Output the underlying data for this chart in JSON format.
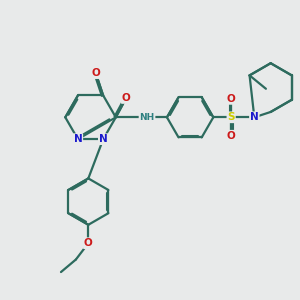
{
  "background_color": "#e8eaea",
  "bond_color": "#2d6b5e",
  "atom_colors": {
    "N": "#1a1acc",
    "O": "#cc1a1a",
    "S": "#cccc00",
    "H": "#2d8080",
    "C": "#2d6b5e"
  },
  "figsize": [
    3.0,
    3.0
  ],
  "dpi": 100
}
